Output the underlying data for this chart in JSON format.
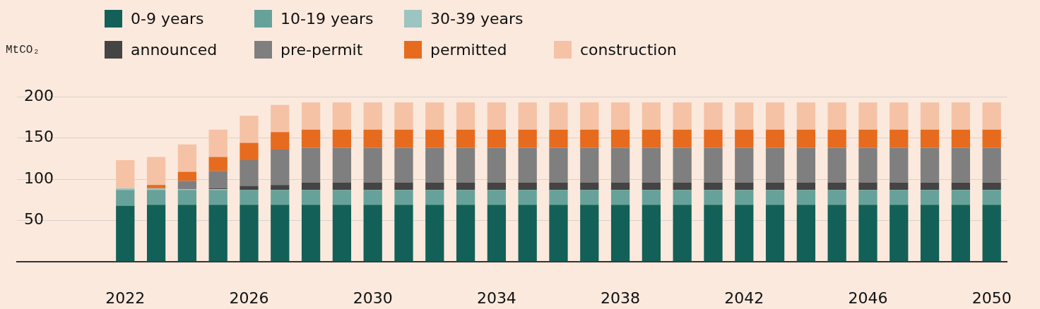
{
  "chart_data": {
    "type": "bar",
    "stacked": true,
    "ylabel": "MtCO₂",
    "categories": [
      null,
      null,
      null,
      "2022",
      null,
      null,
      null,
      "2026",
      null,
      null,
      null,
      "2030",
      null,
      null,
      null,
      "2034",
      null,
      null,
      null,
      "2038",
      null,
      null,
      null,
      "2042",
      null,
      null,
      null,
      "2046",
      null,
      null,
      null,
      "2050"
    ],
    "ylim": [
      0,
      200
    ],
    "yticks": [
      {
        "value": 0,
        "label": null
      },
      50,
      100,
      150,
      200
    ],
    "grid": "y",
    "legend": "top",
    "series": [
      {
        "name": "0-9 years",
        "color": "#136058",
        "values": [
          null,
          null,
          null,
          68,
          69,
          69,
          69,
          69,
          69,
          69,
          69,
          69,
          69,
          69,
          69,
          69,
          69,
          69,
          69,
          69,
          69,
          69,
          69,
          69,
          69,
          69,
          69,
          69,
          69,
          69,
          69,
          69
        ]
      },
      {
        "name": "10-19 years",
        "color": "#66a29a",
        "values": [
          null,
          null,
          null,
          19,
          18,
          18,
          18,
          18,
          18,
          18,
          18,
          18,
          18,
          18,
          18,
          18,
          18,
          18,
          18,
          18,
          18,
          18,
          18,
          18,
          18,
          18,
          18,
          18,
          18,
          18,
          18,
          18
        ]
      },
      {
        "name": "30-39 years",
        "color": "#9cc4c0",
        "values": [
          null,
          null,
          null,
          2,
          2,
          1,
          1,
          null,
          null,
          null,
          null,
          null,
          null,
          null,
          null,
          null,
          null,
          null,
          null,
          null,
          null,
          null,
          null,
          null,
          null,
          null,
          null,
          null,
          null,
          null,
          null,
          null
        ]
      },
      {
        "name": "announced",
        "color": "#444444",
        "values": [
          null,
          null,
          null,
          null,
          null,
          null,
          1,
          5,
          6,
          9,
          9,
          9,
          9,
          9,
          9,
          9,
          9,
          9,
          9,
          9,
          9,
          9,
          9,
          9,
          9,
          9,
          9,
          9,
          9,
          9,
          9,
          9
        ]
      },
      {
        "name": "pre-permit",
        "color": "#7f7f7f",
        "values": [
          null,
          null,
          null,
          null,
          null,
          10,
          21,
          31,
          43,
          42,
          42,
          42,
          42,
          42,
          42,
          42,
          42,
          42,
          42,
          42,
          42,
          42,
          42,
          42,
          42,
          42,
          42,
          42,
          42,
          42,
          42,
          42
        ]
      },
      {
        "name": "permitted",
        "color": "#e66b1e",
        "values": [
          null,
          null,
          null,
          null,
          4,
          11,
          17,
          21,
          21,
          22,
          22,
          22,
          22,
          22,
          22,
          22,
          22,
          22,
          22,
          22,
          22,
          22,
          22,
          22,
          22,
          22,
          22,
          22,
          22,
          22,
          22,
          22
        ]
      },
      {
        "name": "construction",
        "color": "#f5c2a6",
        "values": [
          null,
          null,
          null,
          34,
          34,
          33,
          33,
          33,
          33,
          33,
          33,
          33,
          33,
          33,
          33,
          33,
          33,
          33,
          33,
          33,
          33,
          33,
          33,
          33,
          33,
          33,
          33,
          33,
          33,
          33,
          33,
          33
        ]
      }
    ]
  }
}
